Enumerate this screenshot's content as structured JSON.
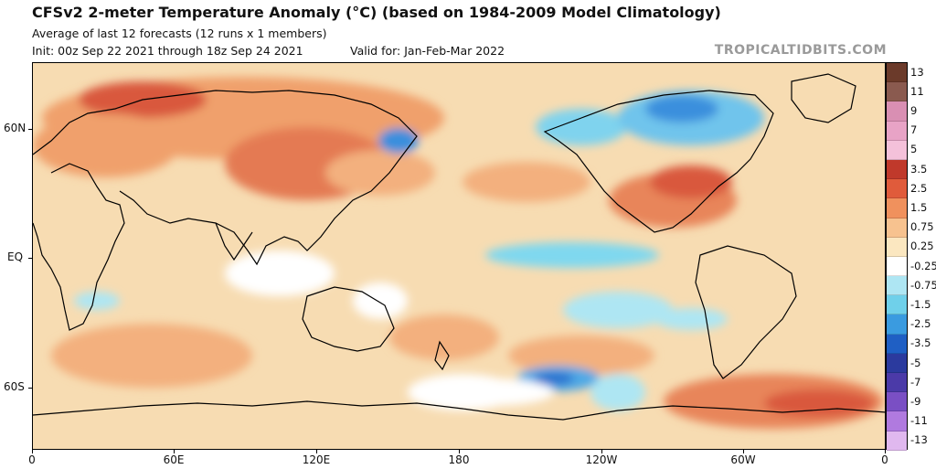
{
  "header": {
    "title": "CFSv2 2-meter Temperature Anomaly (°C) (based on 1984-2009 Model Climatology)",
    "subtitle": "Average of last 12 forecasts (12 runs x 1 members)",
    "init": "Init: 00z Sep 22 2021 through 18z Sep 24 2021",
    "valid": "Valid for: Jan-Feb-Mar 2022",
    "brand": "TROPICALTIDBITS.COM"
  },
  "map": {
    "lat_labels": [
      "60N",
      "EQ",
      "60S"
    ],
    "lon_labels": [
      "0",
      "60E",
      "120E",
      "180",
      "120W",
      "60W",
      "0"
    ]
  },
  "colorbar": {
    "labels": [
      "13",
      "11",
      "9",
      "7",
      "5",
      "3.5",
      "2.5",
      "1.5",
      "0.75",
      "0.25",
      "-0.25",
      "-0.75",
      "-1.5",
      "-2.5",
      "-3.5",
      "-5",
      "-7",
      "-9",
      "-11",
      "-13"
    ],
    "colors": [
      "#6b3a2a",
      "#8a5a4f",
      "#d98fb3",
      "#e8a3c6",
      "#f4c1da",
      "#c0392b",
      "#e05b3b",
      "#f0915d",
      "#f7c28f",
      "#fbe7c0",
      "#ffffff",
      "#aee6f3",
      "#6fd0ea",
      "#3a9be0",
      "#1f5fc4",
      "#2b3a9e",
      "#4b3aa8",
      "#7a4fc4",
      "#b07adf",
      "#e0b8ef"
    ]
  }
}
